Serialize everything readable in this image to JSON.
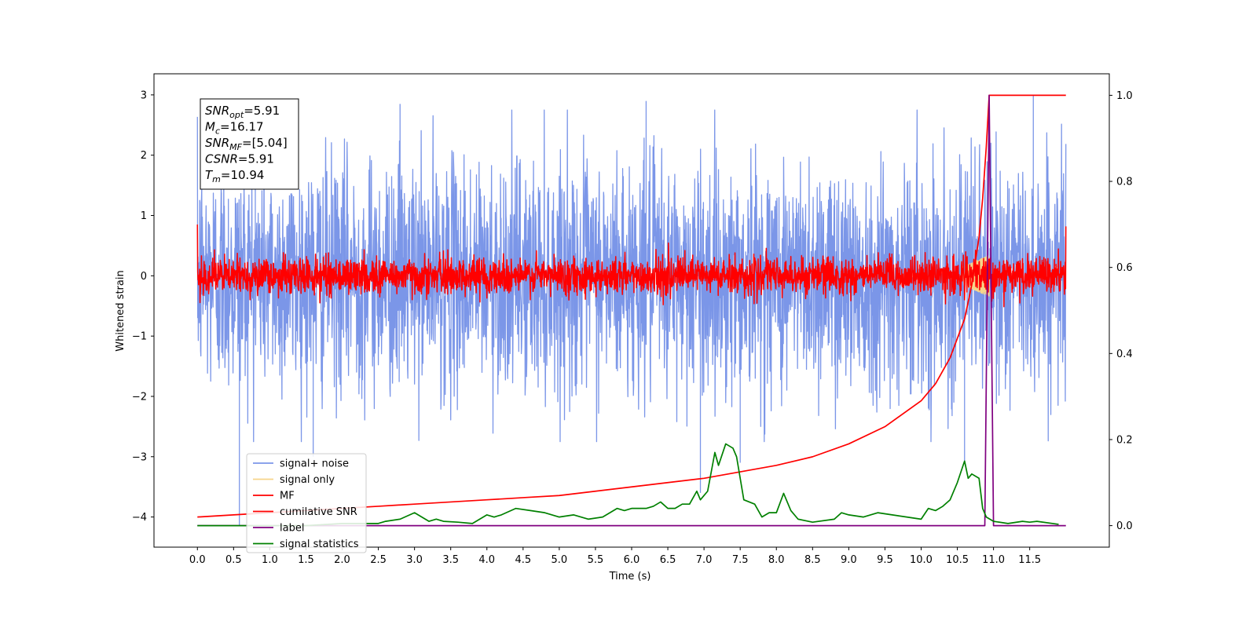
{
  "chart_data": {
    "type": "line",
    "xlabel": "Time (s)",
    "ylabel": "Whitened strain",
    "xlim": [
      -0.6,
      12.6
    ],
    "ylim": [
      -4.5,
      3.35
    ],
    "y2lim": [
      -0.05,
      1.05
    ],
    "x_ticks": [
      "0.0",
      "0.5",
      "1.0",
      "1.5",
      "2.0",
      "2.5",
      "3.0",
      "3.5",
      "4.0",
      "4.5",
      "5.0",
      "5.5",
      "6.0",
      "6.5",
      "7.0",
      "7.5",
      "8.0",
      "8.5",
      "9.0",
      "9.5",
      "10.0",
      "10.5",
      "11.0",
      "11.5"
    ],
    "y_ticks": [
      "3",
      "2",
      "1",
      "0",
      "−1",
      "−2",
      "−3",
      "−4"
    ],
    "y2_ticks": [
      "1.0",
      "0.8",
      "0.6",
      "0.4",
      "0.2",
      "0.0"
    ],
    "annotation": {
      "lines": [
        {
          "label": "SNR",
          "sub": "opt",
          "value": "=5.91"
        },
        {
          "label": "M",
          "sub": "c",
          "value": "=16.17"
        },
        {
          "label": "SNR",
          "sub": "MF",
          "value": "=[5.04]"
        },
        {
          "label": "CSNR",
          "sub": "",
          "value": "=5.91"
        },
        {
          "label": "T",
          "sub": "m",
          "value": "=10.94"
        }
      ]
    },
    "legend": {
      "placement": "lower-left",
      "entries": [
        {
          "name": "signal+ noise",
          "color": "#7b96e8"
        },
        {
          "name": "signal only",
          "color": "#f6d58a"
        },
        {
          "name": "MF",
          "color": "#ff0000"
        },
        {
          "name": "cumilative SNR",
          "color": "#ff0000"
        },
        {
          "name": "label",
          "color": "#800080"
        },
        {
          "name": "signal statistics",
          "color": "#008000"
        }
      ]
    },
    "series": [
      {
        "name": "signal+ noise",
        "axis": "left",
        "color": "#7b96e8",
        "description_values": {
          "x_start": 0.0,
          "x_end": 12.0,
          "mean": 0.0,
          "std": 0.95,
          "outliers": [
            [
              0.58,
              -4.15
            ],
            [
              0.8,
              2.8
            ],
            [
              1.6,
              -3.0
            ],
            [
              2.8,
              2.85
            ],
            [
              6.2,
              2.9
            ],
            [
              6.95,
              -3.6
            ],
            [
              7.5,
              -3.1
            ],
            [
              10.6,
              -3.1
            ],
            [
              11.55,
              3.0
            ]
          ]
        }
      },
      {
        "name": "signal only",
        "axis": "left",
        "color": "#f6d58a",
        "description_values": {
          "x_start": 10.55,
          "x_end": 10.94,
          "amplitude": 0.35
        }
      },
      {
        "name": "MF",
        "axis": "left",
        "color": "#ff0000",
        "description_values": {
          "x_start": 0.0,
          "x_end": 12.0,
          "mean": 0.0,
          "std": 0.15,
          "first_value": 1.0,
          "last_value": 0.82
        }
      },
      {
        "name": "cumilative SNR",
        "axis": "right",
        "x": [
          0.0,
          0.5,
          1.0,
          1.5,
          2.0,
          2.5,
          3.0,
          3.5,
          4.0,
          4.5,
          5.0,
          5.5,
          6.0,
          6.5,
          7.0,
          7.5,
          8.0,
          8.5,
          9.0,
          9.5,
          10.0,
          10.2,
          10.4,
          10.6,
          10.7,
          10.8,
          10.85,
          10.9,
          10.94,
          11.0,
          11.5,
          12.0
        ],
        "y": [
          0.02,
          0.025,
          0.03,
          0.035,
          0.04,
          0.045,
          0.05,
          0.055,
          0.06,
          0.065,
          0.07,
          0.08,
          0.09,
          0.1,
          0.11,
          0.125,
          0.14,
          0.16,
          0.19,
          0.23,
          0.29,
          0.33,
          0.39,
          0.48,
          0.56,
          0.67,
          0.76,
          0.88,
          1.0,
          1.0,
          1.0,
          1.0
        ]
      },
      {
        "name": "label",
        "axis": "right",
        "x": [
          0.0,
          10.88,
          10.94,
          11.0,
          12.0
        ],
        "y": [
          0.0,
          0.0,
          1.0,
          0.0,
          0.0
        ]
      },
      {
        "name": "signal statistics",
        "axis": "right",
        "x": [
          0.0,
          0.5,
          1.0,
          1.5,
          2.0,
          2.5,
          2.6,
          2.8,
          3.0,
          3.1,
          3.2,
          3.3,
          3.4,
          3.6,
          3.8,
          4.0,
          4.1,
          4.2,
          4.4,
          4.6,
          4.8,
          5.0,
          5.2,
          5.4,
          5.6,
          5.8,
          5.9,
          6.0,
          6.2,
          6.3,
          6.4,
          6.5,
          6.6,
          6.7,
          6.8,
          6.9,
          6.95,
          7.0,
          7.05,
          7.15,
          7.2,
          7.3,
          7.4,
          7.45,
          7.55,
          7.7,
          7.8,
          7.9,
          8.0,
          8.1,
          8.2,
          8.3,
          8.5,
          8.8,
          8.9,
          9.0,
          9.2,
          9.4,
          9.6,
          9.8,
          10.0,
          10.1,
          10.2,
          10.3,
          10.4,
          10.5,
          10.6,
          10.65,
          10.7,
          10.8,
          10.85,
          10.9,
          11.0,
          11.2,
          11.4,
          11.5,
          11.6,
          11.9
        ],
        "y": [
          0.0,
          0.0,
          0.0,
          0.0,
          0.005,
          0.005,
          0.01,
          0.015,
          0.03,
          0.02,
          0.01,
          0.015,
          0.01,
          0.008,
          0.005,
          0.025,
          0.02,
          0.025,
          0.04,
          0.035,
          0.03,
          0.02,
          0.025,
          0.015,
          0.02,
          0.04,
          0.035,
          0.04,
          0.04,
          0.045,
          0.055,
          0.04,
          0.04,
          0.05,
          0.05,
          0.08,
          0.06,
          0.07,
          0.08,
          0.17,
          0.14,
          0.19,
          0.18,
          0.16,
          0.06,
          0.05,
          0.02,
          0.03,
          0.03,
          0.075,
          0.035,
          0.015,
          0.008,
          0.015,
          0.03,
          0.025,
          0.02,
          0.03,
          0.025,
          0.02,
          0.015,
          0.04,
          0.035,
          0.045,
          0.06,
          0.1,
          0.15,
          0.11,
          0.12,
          0.11,
          0.04,
          0.02,
          0.01,
          0.005,
          0.01,
          0.008,
          0.01,
          0.003
        ]
      }
    ]
  }
}
